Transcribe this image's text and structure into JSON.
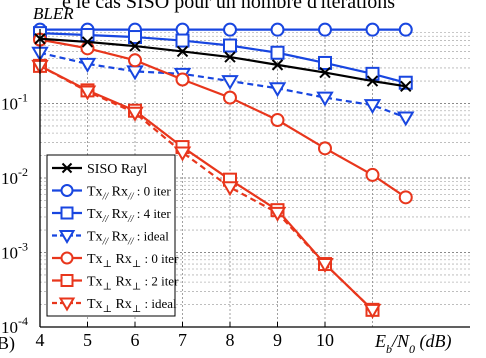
{
  "header_text": "e le cas SISO pour un nombre d'itérations",
  "left_cut_text": "B)",
  "chart_data": {
    "type": "line",
    "ylabel": "BLER",
    "xlabel_main": "E",
    "xlabel_sub_b": "b",
    "xlabel_slash": "/N",
    "xlabel_sub_0": "0",
    "xlabel_unit": " (dB)",
    "x_scale": "linear",
    "y_scale": "log",
    "xlim": [
      4,
      11.7
    ],
    "ylim": [
      0.0001,
      1
    ],
    "x_ticks": [
      4,
      5,
      6,
      7,
      8,
      9,
      10
    ],
    "y_ticks": [
      {
        "value": 0.1,
        "base": "10",
        "exp": "-1"
      },
      {
        "value": 0.01,
        "base": "10",
        "exp": "-2"
      },
      {
        "value": 0.001,
        "base": "10",
        "exp": "-3"
      },
      {
        "value": 0.0001,
        "base": "10",
        "exp": "-4"
      }
    ],
    "grid": true,
    "legend_position": "bottom-left",
    "series": [
      {
        "name": "SISO Rayl",
        "color": "#000000",
        "dash": "solid",
        "marker": "x",
        "x": [
          4,
          5,
          6,
          7,
          8,
          9,
          10,
          11,
          11.7
        ],
        "y": [
          0.74,
          0.67,
          0.59,
          0.5,
          0.42,
          0.33,
          0.26,
          0.2,
          0.17
        ]
      },
      {
        "name": "Tx// Rx// : 0 iter",
        "tx": "Tx",
        "tx_sub": "//",
        "rx": " Rx",
        "rx_sub": "//",
        "rest": " : 0 iter",
        "color": "#1846e0",
        "dash": "solid",
        "marker": "circle",
        "x": [
          4,
          5,
          6,
          7,
          8,
          9,
          10,
          11,
          11.7
        ],
        "y": [
          0.98,
          0.98,
          0.98,
          0.98,
          0.98,
          0.98,
          0.98,
          0.98,
          0.98
        ]
      },
      {
        "name": "Tx// Rx// : 4 iter",
        "tx": "Tx",
        "tx_sub": "//",
        "rx": " Rx",
        "rx_sub": "//",
        "rest": " : 4 iter",
        "color": "#1846e0",
        "dash": "solid",
        "marker": "square",
        "x": [
          4,
          5,
          6,
          7,
          8,
          9,
          10,
          11,
          11.7
        ],
        "y": [
          0.88,
          0.83,
          0.78,
          0.7,
          0.6,
          0.48,
          0.35,
          0.25,
          0.19
        ]
      },
      {
        "name": "Tx// Rx// : ideal",
        "tx": "Tx",
        "tx_sub": "//",
        "rx": " Rx",
        "rx_sub": "//",
        "rest": " : ideal",
        "color": "#1846e0",
        "dash": "dashed",
        "marker": "triangle-down",
        "x": [
          4,
          5,
          6,
          7,
          8,
          9,
          10,
          11,
          11.7
        ],
        "y": [
          0.48,
          0.34,
          0.27,
          0.25,
          0.2,
          0.16,
          0.12,
          0.095,
          0.065
        ]
      },
      {
        "name": "Tx⊥ Rx⊥ : 0 iter",
        "tx": "Tx",
        "tx_sub": "⊥",
        "rx": " Rx",
        "rx_sub": "⊥",
        "rest": " : 0 iter",
        "color": "#e8361c",
        "dash": "solid",
        "marker": "circle",
        "x": [
          4,
          5,
          6,
          7,
          8,
          9,
          10,
          11,
          11.7
        ],
        "y": [
          0.72,
          0.55,
          0.38,
          0.21,
          0.12,
          0.06,
          0.025,
          0.011,
          0.0055
        ]
      },
      {
        "name": "Tx⊥ Rx⊥ : 2 iter",
        "tx": "Tx",
        "tx_sub": "⊥",
        "rx": " Rx",
        "rx_sub": "⊥",
        "rest": " : 2 iter",
        "color": "#e8361c",
        "dash": "solid",
        "marker": "square",
        "x": [
          4,
          5,
          6,
          7,
          8,
          9,
          10,
          11
        ],
        "y": [
          0.32,
          0.15,
          0.08,
          0.026,
          0.0095,
          0.0037,
          0.0007,
          0.00017
        ]
      },
      {
        "name": "Tx⊥ Rx⊥ : ideal",
        "tx": "Tx",
        "tx_sub": "⊥",
        "rx": " Rx",
        "rx_sub": "⊥",
        "rest": " : ideal",
        "color": "#e8361c",
        "dash": "dashed",
        "marker": "triangle-down",
        "x": [
          4,
          5,
          6,
          7,
          8,
          9,
          10,
          11
        ],
        "y": [
          0.32,
          0.145,
          0.075,
          0.022,
          0.0075,
          0.0034,
          0.0007,
          0.00017
        ]
      }
    ]
  }
}
